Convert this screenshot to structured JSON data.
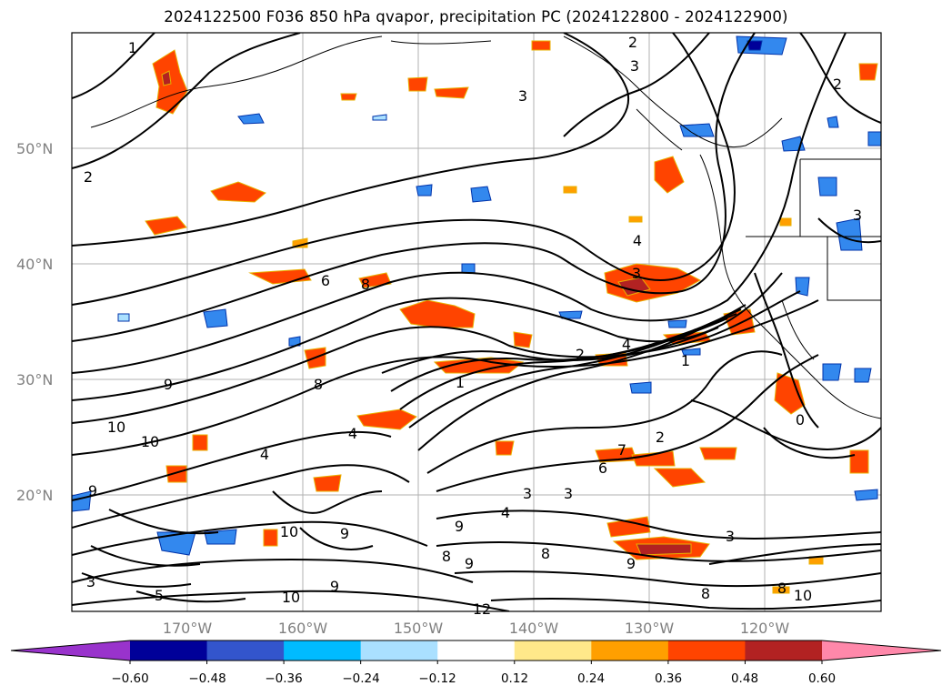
{
  "title": "2024122500 F036 850 hPa qvapor, precipitation PC (2024122800 - 2024122900)",
  "lat_labels": [
    "50°N",
    "40°N",
    "30°N",
    "20°N"
  ],
  "lon_labels": [
    "170°W",
    "160°W",
    "150°W",
    "140°W",
    "130°W",
    "120°W"
  ],
  "colorbar": {
    "ticks": [
      "−0.60",
      "−0.48",
      "−0.36",
      "−0.24",
      "−0.12",
      "0.12",
      "0.24",
      "0.36",
      "0.48",
      "0.60"
    ],
    "colors": [
      "#9933cc",
      "#000099",
      "#3355cc",
      "#00bbff",
      "#aae0ff",
      "#ffffff",
      "#ffe88a",
      "#ff9f00",
      "#ff4400",
      "#b22222",
      "#ff88aa"
    ]
  },
  "contour_labels": [
    {
      "t": "1"
    },
    {
      "t": "2"
    },
    {
      "t": "3"
    },
    {
      "t": "3"
    },
    {
      "t": "2"
    },
    {
      "t": "2"
    },
    {
      "t": "3"
    },
    {
      "t": "6"
    },
    {
      "t": "8"
    },
    {
      "t": "4"
    },
    {
      "t": "3"
    },
    {
      "t": "1"
    },
    {
      "t": "2"
    },
    {
      "t": "4"
    },
    {
      "t": "1"
    },
    {
      "t": "9"
    },
    {
      "t": "10"
    },
    {
      "t": "10"
    },
    {
      "t": "8"
    },
    {
      "t": "4"
    },
    {
      "t": "4"
    },
    {
      "t": "9"
    },
    {
      "t": "2"
    },
    {
      "t": "7"
    },
    {
      "t": "6"
    },
    {
      "t": "3"
    },
    {
      "t": "3"
    },
    {
      "t": "4"
    },
    {
      "t": "9"
    },
    {
      "t": "8"
    },
    {
      "t": "9"
    },
    {
      "t": "10"
    },
    {
      "t": "8"
    },
    {
      "t": "9"
    },
    {
      "t": "9"
    },
    {
      "t": "12"
    },
    {
      "t": "3"
    },
    {
      "t": "8"
    },
    {
      "t": "10"
    },
    {
      "t": "0"
    },
    {
      "t": "8"
    },
    {
      "t": "3"
    },
    {
      "t": "5"
    },
    {
      "t": "9"
    },
    {
      "t": "10"
    }
  ]
}
